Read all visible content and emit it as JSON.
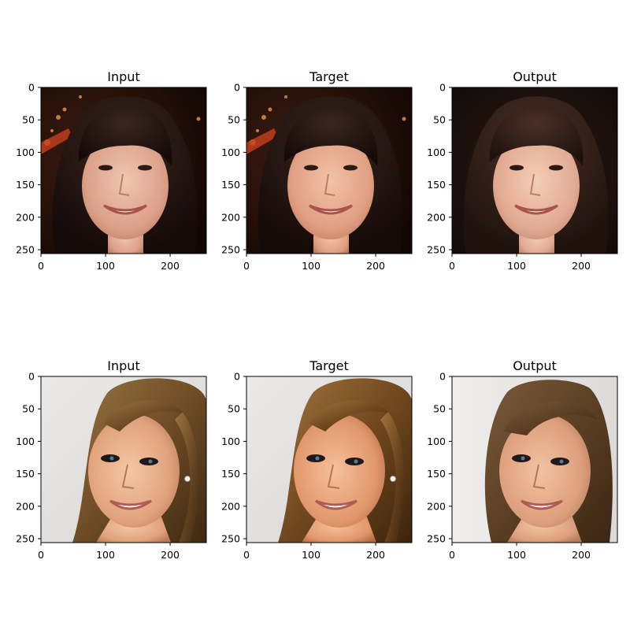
{
  "figure": {
    "rows": [
      {
        "panels": [
          {
            "title": "Input",
            "subject": "woman-dark-bangs",
            "variant": "input"
          },
          {
            "title": "Target",
            "subject": "woman-dark-bangs",
            "variant": "target"
          },
          {
            "title": "Output",
            "subject": "woman-dark-bangs",
            "variant": "output"
          }
        ]
      },
      {
        "panels": [
          {
            "title": "Input",
            "subject": "woman-light-brown-hair",
            "variant": "input"
          },
          {
            "title": "Target",
            "subject": "woman-light-brown-hair",
            "variant": "target"
          },
          {
            "title": "Output",
            "subject": "woman-light-brown-hair",
            "variant": "output"
          }
        ]
      }
    ],
    "axis": {
      "x_ticks": [
        "0",
        "100",
        "200"
      ],
      "y_ticks": [
        "0",
        "50",
        "100",
        "150",
        "200",
        "250"
      ],
      "x_tick_values": [
        0,
        100,
        200
      ],
      "y_tick_values": [
        0,
        50,
        100,
        150,
        200,
        250
      ],
      "extent": [
        0,
        256
      ]
    },
    "colors": {
      "spine": "#000000",
      "background": "#ffffff"
    }
  }
}
